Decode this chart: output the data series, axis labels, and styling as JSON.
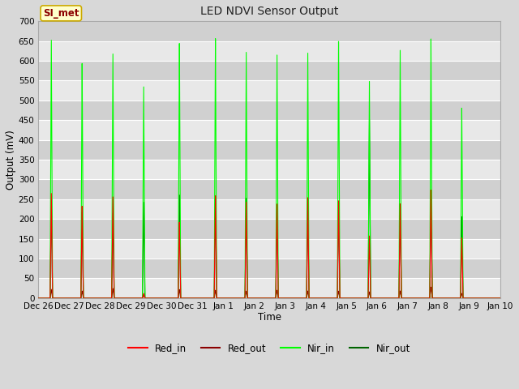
{
  "title": "LED NDVI Sensor Output",
  "xlabel": "Time",
  "ylabel": "Output (mV)",
  "ylim": [
    0,
    700
  ],
  "yticks": [
    0,
    50,
    100,
    150,
    200,
    250,
    300,
    350,
    400,
    450,
    500,
    550,
    600,
    650,
    700
  ],
  "bg_color": "#d8d8d8",
  "plot_bg_color": "#d8d8d8",
  "band_colors": [
    "#e8e8e8",
    "#d0d0d0"
  ],
  "grid_color": "#ffffff",
  "legend_label": "SI_met",
  "series": {
    "Red_in": {
      "color": "#ff0000",
      "lw": 0.8
    },
    "Red_out": {
      "color": "#8b0000",
      "lw": 0.8
    },
    "Nir_in": {
      "color": "#00ff00",
      "lw": 0.8
    },
    "Nir_out": {
      "color": "#006400",
      "lw": 0.8
    }
  },
  "spike_positions_days": [
    0.42,
    1.42,
    2.42,
    3.42,
    4.58,
    5.75,
    6.75,
    7.75,
    8.75,
    9.75,
    10.75,
    11.75,
    12.75,
    13.75
  ],
  "red_in_peaks": [
    265,
    235,
    262,
    12,
    195,
    262,
    248,
    240,
    255,
    250,
    160,
    240,
    275,
    155
  ],
  "red_out_peaks": [
    22,
    18,
    25,
    8,
    22,
    20,
    18,
    20,
    18,
    18,
    16,
    18,
    28,
    12
  ],
  "nir_in_peaks": [
    653,
    600,
    632,
    540,
    655,
    665,
    635,
    620,
    622,
    660,
    558,
    630,
    660,
    490
  ],
  "nir_out_peaks": [
    248,
    220,
    220,
    245,
    265,
    262,
    258,
    238,
    240,
    235,
    460,
    235,
    260,
    210
  ],
  "x_start_day": 0,
  "x_end_day": 15,
  "xtick_labels": [
    "Dec 26",
    "Dec 27",
    "Dec 28",
    "Dec 29",
    "Dec 30",
    "Dec 31",
    "Jan 1",
    "Jan 2",
    "Jan 3",
    "Jan 4",
    "Jan 5",
    "Jan 6",
    "Jan 7",
    "Jan 8",
    "Jan 9",
    "Jan 10"
  ],
  "xtick_positions": [
    0,
    1,
    2,
    3,
    4,
    5,
    6,
    7,
    8,
    9,
    10,
    11,
    12,
    13,
    14,
    15
  ]
}
